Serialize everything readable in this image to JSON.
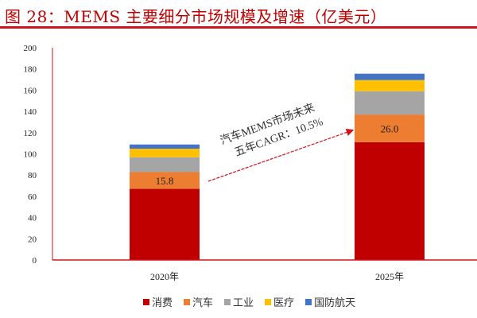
{
  "header": {
    "title": "图 28：MEMS 主要细分市场规模及增速（亿美元）"
  },
  "chart_data": {
    "type": "bar",
    "stacked": true,
    "title": "图 28：MEMS 主要细分市场规模及增速（亿美元）",
    "xlabel": "",
    "ylabel": "",
    "ylim": [
      0,
      200
    ],
    "yticks": [
      0,
      20,
      40,
      60,
      80,
      100,
      120,
      140,
      160,
      180,
      200
    ],
    "categories": [
      "2020年",
      "2025年"
    ],
    "series": [
      {
        "name": "消费",
        "color": "#c00000",
        "values": [
          67,
          111
        ]
      },
      {
        "name": "汽车",
        "color": "#ed7d31",
        "values": [
          15.8,
          26.0
        ],
        "labels": [
          "15.8",
          "26.0"
        ]
      },
      {
        "name": "工业",
        "color": "#a5a5a5",
        "values": [
          14,
          22
        ]
      },
      {
        "name": "医疗",
        "color": "#ffc000",
        "values": [
          8,
          10.5
        ]
      },
      {
        "name": "国防航天",
        "color": "#4472c4",
        "values": [
          4,
          6
        ]
      }
    ],
    "grid": false,
    "legend_position": "bottom",
    "annotations": [
      {
        "text_line1": "汽车MEMS市场未来",
        "text_line2": "五年CAGR：10.5%",
        "arrow_from": "2020年",
        "arrow_to": "2025年"
      }
    ]
  },
  "legend": [
    {
      "label": "消费",
      "color": "#c00000"
    },
    {
      "label": "汽车",
      "color": "#ed7d31"
    },
    {
      "label": "工业",
      "color": "#a5a5a5"
    },
    {
      "label": "医疗",
      "color": "#ffc000"
    },
    {
      "label": "国防航天",
      "color": "#4472c4"
    }
  ],
  "annotation": {
    "line1": "汽车MEMS市场未来",
    "line2": "五年CAGR：10.5%"
  }
}
